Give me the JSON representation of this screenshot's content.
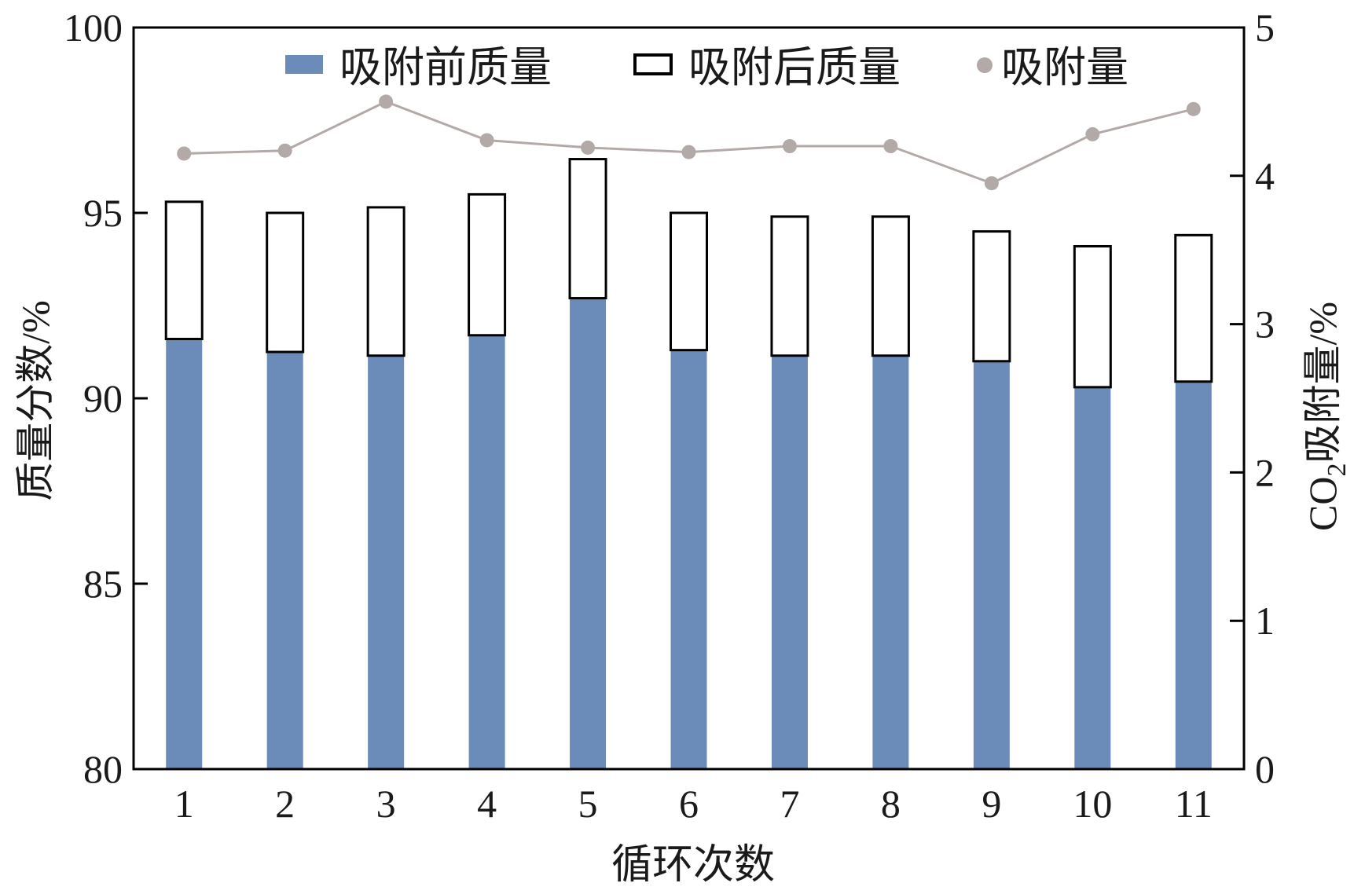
{
  "chart_data": {
    "type": "bar",
    "xlabel": "循环次数",
    "ylabel": "质量分数/%",
    "y2label_prefix": "CO",
    "y2label_sub": "2",
    "y2label_suffix": "吸附量/%",
    "categories": [
      "1",
      "2",
      "3",
      "4",
      "5",
      "6",
      "7",
      "8",
      "9",
      "10",
      "11"
    ],
    "ylim": [
      80,
      100
    ],
    "yticks": [
      "80",
      "85",
      "90",
      "95",
      "100"
    ],
    "y2lim": [
      0,
      5
    ],
    "y2ticks": [
      "0",
      "1",
      "2",
      "3",
      "4",
      "5"
    ],
    "legend_position": "top",
    "grid": false,
    "series": [
      {
        "name": "吸附前质量",
        "kind": "bar",
        "axis": "left",
        "color": "#6b8cb8",
        "values": [
          91.6,
          91.25,
          91.15,
          91.7,
          92.7,
          91.3,
          91.15,
          91.15,
          91.0,
          90.3,
          90.45
        ]
      },
      {
        "name": "吸附后质量",
        "kind": "bar-outline",
        "axis": "left",
        "color": "#000000",
        "values": [
          95.3,
          95.0,
          95.15,
          95.5,
          96.45,
          95.0,
          94.9,
          94.9,
          94.5,
          94.1,
          94.4
        ]
      },
      {
        "name": "吸附量",
        "kind": "line",
        "axis": "right",
        "color": "#b3aaa8",
        "values": [
          4.15,
          4.17,
          4.5,
          4.24,
          4.19,
          4.16,
          4.2,
          4.2,
          3.95,
          4.28,
          4.45
        ]
      }
    ]
  }
}
